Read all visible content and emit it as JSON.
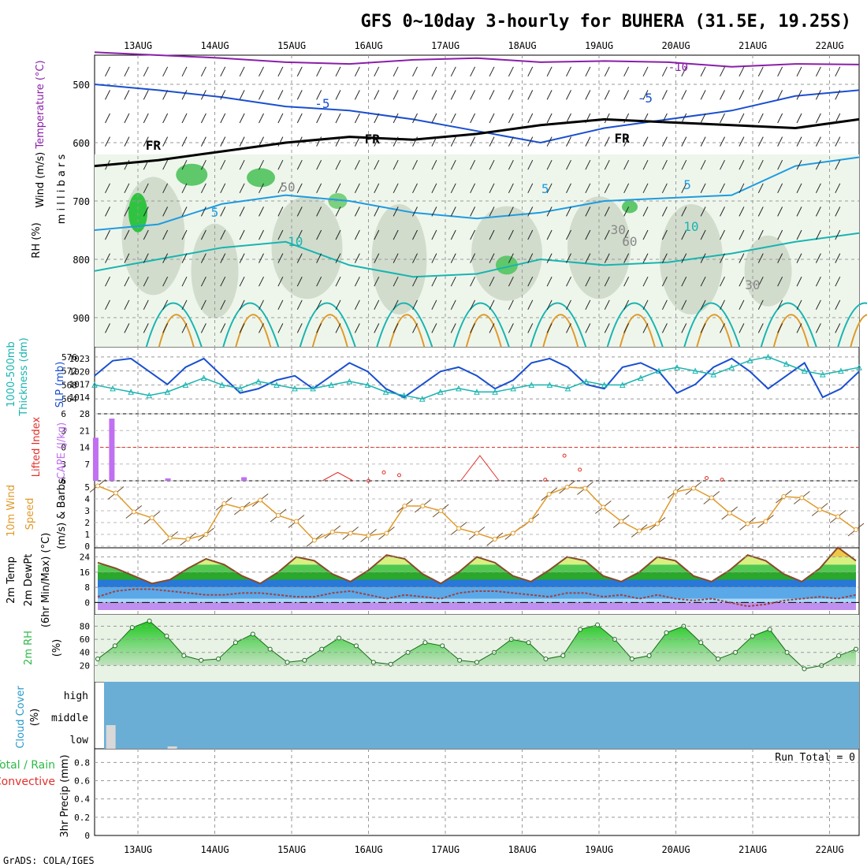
{
  "title": "GFS 0~10day 3-hourly for BUHERA (31.5E, 19.25S)",
  "footer": "GrADS: COLA/IGES",
  "colors": {
    "purple": "#8a1ea8",
    "blue": "#1a4fd0",
    "skyblue": "#1e9be0",
    "teal": "#19b4b0",
    "green": "#2fb84a",
    "orange": "#e09a2a",
    "red": "#e0302a",
    "grey": "#9aa89a",
    "cloud": "#6aaed6",
    "lightgreen": "#e8f3e6"
  },
  "chart_data": [
    {
      "id": "upper-air",
      "type": "heatmap",
      "ylabels": [
        "Wind (m/s)",
        "Temperature (°C)",
        "RH (%)",
        "(millibars)"
      ],
      "ylabel_axis": "m i l l i b a r s",
      "yticks": [
        500,
        600,
        700,
        800,
        900
      ],
      "ylim": [
        450,
        950
      ],
      "day_labels": [
        "13AUG",
        "14AUG",
        "15AUG",
        "16AUG",
        "17AUG",
        "18AUG",
        "19AUG",
        "20AUG",
        "21AUG",
        "22AUG"
      ],
      "contour_labels": [
        "-10",
        "-5",
        "-5",
        "5",
        "5",
        "5",
        "10",
        "FR",
        "FR",
        "FR",
        "50",
        "10",
        "30",
        "30",
        "60"
      ],
      "series": [
        {
          "name": "-10 isotherm",
          "color": "purple",
          "values": [
            445,
            450,
            455,
            462,
            465,
            458,
            455,
            462,
            460,
            462,
            470,
            465,
            466
          ]
        },
        {
          "name": "-5 isotherm",
          "color": "blue",
          "values": [
            500,
            510,
            522,
            538,
            545,
            560,
            580,
            600,
            575,
            560,
            545,
            520,
            510
          ]
        },
        {
          "name": "FR isoline",
          "color": "black",
          "values": [
            640,
            630,
            615,
            600,
            590,
            595,
            585,
            570,
            560,
            565,
            570,
            575,
            560
          ]
        },
        {
          "name": "5 isotherm",
          "color": "skyblue",
          "values": [
            750,
            740,
            705,
            690,
            700,
            720,
            730,
            720,
            700,
            695,
            690,
            640,
            625
          ]
        },
        {
          "name": "10 isotherm",
          "color": "teal",
          "values": [
            820,
            800,
            780,
            770,
            810,
            830,
            825,
            800,
            810,
            805,
            790,
            770,
            755
          ]
        }
      ]
    },
    {
      "id": "slp-thickness",
      "type": "line",
      "ylabels": [
        "1000-500mb",
        "Thickness (dm)",
        "SLP (mb)"
      ],
      "yticks_left": [
        564,
        568,
        572,
        576
      ],
      "yticks_right": [
        1014,
        1017,
        1020,
        1023
      ],
      "series": [
        {
          "name": "SLP (mb)",
          "color": "blue",
          "values": [
            1019,
            1022.5,
            1023,
            1020,
            1017,
            1021,
            1023,
            1019,
            1015,
            1016,
            1018,
            1019,
            1016,
            1019,
            1022,
            1020,
            1016,
            1014,
            1017,
            1020,
            1021,
            1019,
            1016,
            1018,
            1022,
            1023,
            1021,
            1017,
            1016,
            1021,
            1022,
            1020,
            1015,
            1017,
            1021,
            1023,
            1020,
            1016,
            1019,
            1022,
            1014,
            1016,
            1020
          ]
        },
        {
          "name": "Thickness (dm)",
          "color": "teal",
          "values": [
            568,
            567,
            566,
            565,
            566,
            568,
            570,
            568,
            567,
            569,
            568,
            567,
            567,
            568,
            569,
            568,
            566,
            565,
            564,
            566,
            567,
            566,
            566,
            567,
            568,
            568,
            567,
            569,
            568,
            568,
            570,
            572,
            573,
            572,
            571,
            573,
            575,
            576,
            574,
            572,
            571,
            572,
            573
          ]
        }
      ]
    },
    {
      "id": "cape-li",
      "type": "bar",
      "ylabels": [
        "Lifted Index",
        "CAPE (J/kg)"
      ],
      "yticks_left": [
        -6,
        -3,
        0,
        3,
        6
      ],
      "yticks_right": [
        7,
        14,
        21,
        28
      ],
      "cape_values": [
        {
          "t": 0.03,
          "v": 18
        },
        {
          "t": 0.24,
          "v": 26
        },
        {
          "t": 0.97,
          "v": 1
        },
        {
          "t": 1.96,
          "v": 1.5
        }
      ],
      "lifted_index": [
        {
          "t": 3.0,
          "v": 6
        },
        {
          "t": 3.2,
          "v": 4.5
        },
        {
          "t": 3.4,
          "v": 5
        },
        {
          "t": 5.3,
          "v": 5.8
        },
        {
          "t": 5.55,
          "v": 1.5
        },
        {
          "t": 5.75,
          "v": 4
        },
        {
          "t": 7.4,
          "v": 5.5
        },
        {
          "t": 7.6,
          "v": 5.8
        }
      ]
    },
    {
      "id": "wind10m",
      "type": "line",
      "ylabels": [
        "10m Wind",
        "Speed",
        "(m/s) & Barbs"
      ],
      "yticks": [
        0,
        1,
        2,
        3,
        4,
        5
      ],
      "series": [
        {
          "name": "speed",
          "color": "orange",
          "values": [
            5.1,
            4.5,
            2.9,
            2.4,
            0.7,
            0.6,
            1,
            3.6,
            3.2,
            3.9,
            2.6,
            2.1,
            0.5,
            1.2,
            1.1,
            0.9,
            1.1,
            3.4,
            3.4,
            3,
            1.5,
            1.1,
            0.6,
            1.1,
            2.2,
            4.4,
            5,
            4.9,
            3.3,
            2.1,
            1.3,
            1.9,
            4.6,
            4.9,
            4.1,
            2.8,
            1.9,
            2.1,
            4.2,
            4.1,
            3.1,
            2.5,
            1.4
          ]
        }
      ]
    },
    {
      "id": "temp2m",
      "type": "area",
      "ylabels": [
        "2m Temp",
        "2m DewPt",
        "(6hr Min/Max) (°C)"
      ],
      "yticks": [
        0,
        8,
        16,
        24
      ],
      "series": [
        {
          "name": "2m Temp",
          "values": [
            21,
            18,
            14,
            10,
            12,
            18,
            23,
            20,
            14,
            10,
            16,
            24,
            22,
            15,
            11,
            17,
            25,
            23,
            15,
            10,
            16,
            24,
            21,
            14,
            11,
            17,
            24,
            22,
            14,
            11,
            16,
            24,
            22,
            14,
            11,
            17,
            25,
            22,
            15,
            11,
            18,
            29,
            22
          ]
        },
        {
          "name": "2m DewPt",
          "values": [
            3,
            6,
            7,
            7,
            6,
            5,
            4,
            4,
            5,
            5,
            4,
            3,
            3,
            5,
            6,
            4,
            2,
            4,
            3,
            2,
            5,
            6,
            6,
            5,
            4,
            3,
            5,
            5,
            3,
            4,
            2,
            4,
            2,
            1,
            2,
            0,
            -2,
            -1,
            1,
            2,
            3,
            2,
            4
          ]
        }
      ]
    },
    {
      "id": "rh2m",
      "type": "area",
      "ylabels": [
        "2m RH",
        "(%)"
      ],
      "yticks": [
        20,
        40,
        60,
        80
      ],
      "series": [
        {
          "name": "2m RH",
          "values": [
            30,
            50,
            78,
            88,
            65,
            35,
            28,
            30,
            55,
            68,
            45,
            25,
            28,
            45,
            62,
            50,
            25,
            22,
            40,
            55,
            50,
            28,
            25,
            40,
            60,
            55,
            30,
            35,
            75,
            82,
            60,
            30,
            35,
            70,
            80,
            55,
            30,
            40,
            65,
            75,
            40,
            15,
            20,
            35,
            45
          ]
        }
      ]
    },
    {
      "id": "cloud",
      "type": "bar",
      "ylabels": [
        "Cloud Cover",
        "(%)"
      ],
      "levels": [
        "high",
        "middle",
        "low"
      ],
      "low_cloud": [
        {
          "t": 0.15,
          "v": 30
        },
        {
          "t": 0.95,
          "v": 3
        }
      ]
    },
    {
      "id": "precip",
      "type": "bar",
      "ylabels": [
        "Total / Rain",
        "Convective",
        "3hr Precip (mm)"
      ],
      "yticks": [
        0,
        0.2,
        0.4,
        0.6,
        0.8
      ],
      "run_total": "Run Total = 0",
      "values": []
    }
  ]
}
